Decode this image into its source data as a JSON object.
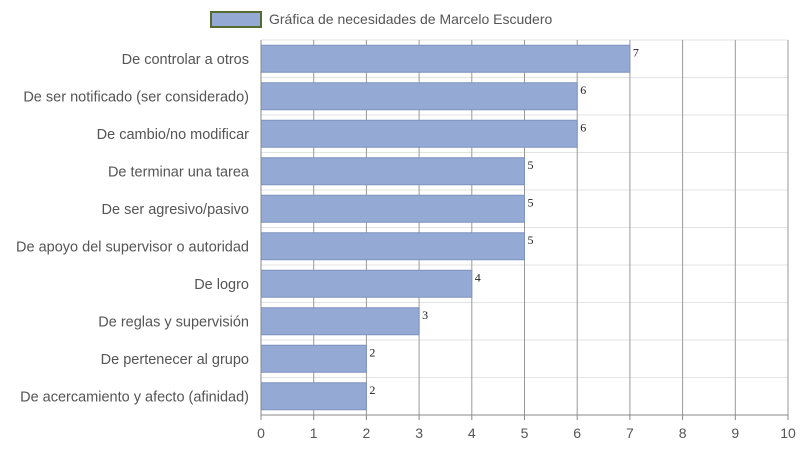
{
  "chart_data": {
    "type": "bar",
    "orientation": "horizontal",
    "categories": [
      "De controlar a otros",
      "De ser notificado (ser considerado)",
      "De cambio/no modificar",
      "De terminar una tarea",
      "De ser agresivo/pasivo",
      "De apoyo del supervisor o autoridad",
      "De logro",
      "De reglas y supervisión",
      "De pertenecer al grupo",
      "De acercamiento y afecto (afinidad)"
    ],
    "series": [
      {
        "name": "Gráfica de necesidades de Marcelo Escudero",
        "values": [
          7,
          6,
          6,
          5,
          5,
          5,
          4,
          3,
          2,
          2
        ]
      }
    ],
    "xlim": [
      0,
      10
    ],
    "x_ticks": [
      "0",
      "1",
      "2",
      "3",
      "4",
      "5",
      "6",
      "7",
      "8",
      "9",
      "10"
    ],
    "grid": true,
    "legend_position": "top",
    "data_labels": true,
    "colors": {
      "bar_fill": "#94a9d4",
      "bar_stroke": "#7f93bf",
      "legend_border": "#556b2f",
      "grid": "#999999"
    }
  }
}
